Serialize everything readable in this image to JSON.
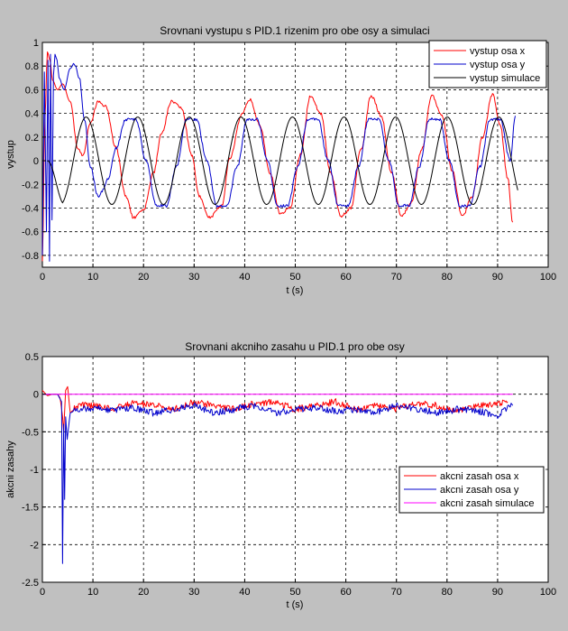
{
  "chart_data": [
    {
      "type": "line",
      "title": "Srovnani vystupu s PID.1 rizenim pro obe osy a simulaci",
      "xlabel": "t (s)",
      "ylabel": "vystup",
      "xlim": [
        0,
        100
      ],
      "ylim": [
        -0.9,
        1
      ],
      "grid": true,
      "legend_position": "top-right",
      "xticks": [
        "0",
        "10",
        "20",
        "30",
        "40",
        "50",
        "60",
        "70",
        "80",
        "90",
        "100"
      ],
      "yticks": [
        "-0.8",
        "-0.6",
        "-0.4",
        "-0.2",
        "0",
        "0.2",
        "0.4",
        "0.6",
        "0.8",
        "1"
      ],
      "series": [
        {
          "name": "vystup osa x",
          "color": "#ff0000",
          "x": [
            0,
            0.5,
            1,
            1.5,
            2,
            3,
            4,
            5.5,
            7,
            8,
            9.5,
            11,
            12.5,
            14.5,
            16.5,
            18,
            20,
            22,
            23.5,
            25.5,
            27.5,
            29.5,
            31,
            33,
            35.5,
            37,
            39.5,
            41,
            43,
            45,
            47,
            49,
            51,
            53,
            55,
            57,
            59,
            61,
            63,
            65,
            67,
            69,
            71,
            73,
            75,
            77,
            79,
            81,
            83,
            85,
            87,
            89,
            90.5,
            92,
            93
          ],
          "y": [
            -0.85,
            0.35,
            0.92,
            0.85,
            0.68,
            0.6,
            0.65,
            0.5,
            0.1,
            0.05,
            0.32,
            0.5,
            0.46,
            0.12,
            -0.3,
            -0.48,
            -0.42,
            -0.1,
            0.22,
            0.5,
            0.45,
            0.05,
            -0.3,
            -0.48,
            -0.38,
            0.02,
            0.4,
            0.52,
            0.3,
            -0.1,
            -0.45,
            -0.4,
            0.05,
            0.55,
            0.4,
            -0.1,
            -0.47,
            -0.4,
            0.1,
            0.55,
            0.38,
            -0.1,
            -0.47,
            -0.35,
            0.1,
            0.55,
            0.38,
            -0.08,
            -0.47,
            -0.3,
            0.2,
            0.56,
            0.3,
            -0.15,
            -0.52
          ]
        },
        {
          "name": "vystup osa y",
          "color": "#0000cc",
          "x": [
            0,
            0.4,
            0.8,
            1.1,
            1.4,
            1.6,
            1.9,
            2.2,
            2.5,
            2.9,
            3.3,
            4.3,
            5.5,
            6.3,
            7.3,
            8.3,
            9.5,
            11,
            12,
            13,
            14.5,
            16.5,
            18.5,
            20.5,
            22.5,
            24.5,
            26.5,
            28.5,
            30.5,
            32.5,
            34.5,
            36.5,
            38.5,
            40.5,
            42.5,
            44.5,
            46.5,
            48.5,
            50.5,
            52.5,
            54.5,
            56.5,
            58.5,
            60.5,
            62.5,
            64.5,
            66.5,
            68.5,
            70.5,
            72.5,
            74.5,
            76.5,
            78.5,
            80.5,
            82.5,
            84.5,
            86.5,
            88.5,
            90.5,
            92.5,
            93.5
          ],
          "y": [
            -0.8,
            0.75,
            -0.6,
            0.85,
            -0.85,
            0.9,
            -0.5,
            0.72,
            0.9,
            0.85,
            0.7,
            0.6,
            0.78,
            0.82,
            0.7,
            0.35,
            -0.05,
            -0.3,
            -0.25,
            -0.15,
            0.1,
            0.35,
            0.35,
            0.0,
            -0.38,
            -0.38,
            -0.05,
            0.35,
            0.35,
            0.0,
            -0.38,
            -0.38,
            -0.05,
            0.35,
            0.35,
            0.0,
            -0.38,
            -0.38,
            -0.05,
            0.35,
            0.35,
            0.0,
            -0.38,
            -0.38,
            -0.05,
            0.35,
            0.35,
            0.0,
            -0.38,
            -0.38,
            -0.05,
            0.35,
            0.35,
            0.0,
            -0.38,
            -0.38,
            -0.05,
            0.35,
            0.35,
            0.0,
            0.38
          ]
        },
        {
          "name": "vystup simulace",
          "color": "#000000",
          "period_s": 10.2,
          "amplitude": 0.37,
          "sim_start_s": 1,
          "sim_end_s": 94
        }
      ]
    },
    {
      "type": "line",
      "title": "Srovnani akcniho zasahu u PID.1 pro obe osy",
      "xlabel": "t (s)",
      "ylabel": "akcni zasahy",
      "xlim": [
        0,
        100
      ],
      "ylim": [
        -2.5,
        0.5
      ],
      "grid": true,
      "legend_position": "right",
      "xticks": [
        "0",
        "10",
        "20",
        "30",
        "40",
        "50",
        "60",
        "70",
        "80",
        "90",
        "100"
      ],
      "yticks": [
        "-2.5",
        "-2",
        "-1.5",
        "-1",
        "-0.5",
        "0",
        "0.5"
      ],
      "series": [
        {
          "name": "akcni zasah osa x",
          "color": "#ff0000",
          "x": [
            0,
            1,
            2,
            3,
            3.5,
            4,
            4.2,
            4.6,
            5,
            5.5,
            7,
            10,
            14,
            18,
            22,
            26,
            30,
            34,
            38,
            42,
            46,
            50,
            54,
            58,
            62,
            66,
            70,
            74,
            78,
            82,
            86,
            90,
            92
          ],
          "y": [
            0.05,
            -0.02,
            0,
            0,
            -0.05,
            -0.3,
            -0.5,
            0.05,
            0.1,
            -0.25,
            -0.15,
            -0.15,
            -0.2,
            -0.12,
            -0.15,
            -0.2,
            -0.1,
            -0.15,
            -0.2,
            -0.12,
            -0.1,
            -0.2,
            -0.15,
            -0.1,
            -0.2,
            -0.15,
            -0.2,
            -0.12,
            -0.15,
            -0.22,
            -0.15,
            -0.12,
            -0.1
          ]
        },
        {
          "name": "akcni zasah osa y",
          "color": "#0000cc",
          "x": [
            0,
            1,
            2,
            3,
            3.8,
            4,
            4.2,
            4.4,
            4.6,
            4.9,
            5.5,
            7,
            10,
            14,
            18,
            22,
            26,
            30,
            34,
            38,
            42,
            46,
            50,
            54,
            58,
            62,
            66,
            70,
            74,
            78,
            82,
            86,
            90,
            93
          ],
          "y": [
            0,
            0,
            0,
            0,
            -0.1,
            -2.25,
            -0.4,
            -1.4,
            -0.3,
            -0.6,
            -0.25,
            -0.2,
            -0.18,
            -0.22,
            -0.18,
            -0.25,
            -0.2,
            -0.15,
            -0.25,
            -0.2,
            -0.15,
            -0.25,
            -0.2,
            -0.18,
            -0.22,
            -0.2,
            -0.25,
            -0.15,
            -0.2,
            -0.25,
            -0.2,
            -0.22,
            -0.28,
            -0.15
          ]
        },
        {
          "name": "akcni zasah simulace",
          "color": "#ff00ff",
          "x": [
            0,
            93
          ],
          "y": [
            0,
            0
          ]
        }
      ]
    }
  ]
}
